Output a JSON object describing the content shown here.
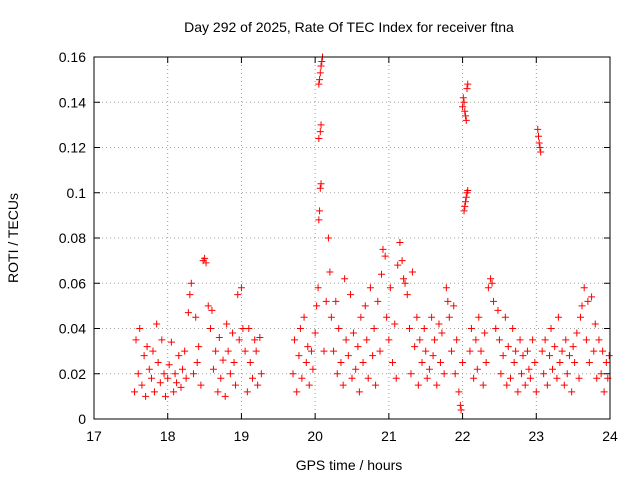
{
  "chart_data": {
    "type": "scatter",
    "title": "Day 292 of 2025, Rate Of TEC Index for receiver ftna",
    "xlabel": "GPS time / hours",
    "ylabel": "ROTI / TECUs",
    "xlim": [
      17,
      24
    ],
    "ylim": [
      0,
      0.16
    ],
    "x_ticks": [
      17,
      18,
      19,
      20,
      21,
      22,
      23,
      24
    ],
    "x_tick_labels": [
      "17",
      "18",
      "19",
      "20",
      "21",
      "22",
      "23",
      "24"
    ],
    "y_ticks": [
      0,
      0.02,
      0.04,
      0.06,
      0.08,
      0.1,
      0.12,
      0.14,
      0.16
    ],
    "y_tick_labels": [
      "0",
      "0.02",
      "0.04",
      "0.06",
      "0.08",
      "0.1",
      "0.12",
      "0.14",
      "0.16"
    ],
    "grid": true,
    "marker": "+",
    "color": "#ff0000",
    "series": [
      {
        "name": "ROTI",
        "points": [
          [
            17.55,
            0.012
          ],
          [
            17.57,
            0.035
          ],
          [
            17.6,
            0.02
          ],
          [
            17.62,
            0.04
          ],
          [
            17.65,
            0.015
          ],
          [
            17.68,
            0.028
          ],
          [
            17.7,
            0.01
          ],
          [
            17.72,
            0.032
          ],
          [
            17.75,
            0.022
          ],
          [
            17.78,
            0.018
          ],
          [
            17.8,
            0.03
          ],
          [
            17.82,
            0.012
          ],
          [
            17.85,
            0.042
          ],
          [
            17.87,
            0.025
          ],
          [
            17.9,
            0.016
          ],
          [
            17.92,
            0.035
          ],
          [
            17.95,
            0.02
          ],
          [
            17.97,
            0.01
          ],
          [
            18.0,
            0.018
          ],
          [
            18.02,
            0.024
          ],
          [
            18.05,
            0.034
          ],
          [
            18.08,
            0.012
          ],
          [
            18.1,
            0.02
          ],
          [
            18.12,
            0.016
          ],
          [
            18.15,
            0.028
          ],
          [
            18.18,
            0.014
          ],
          [
            18.2,
            0.022
          ],
          [
            18.23,
            0.03
          ],
          [
            18.25,
            0.018
          ],
          [
            18.28,
            0.047
          ],
          [
            18.3,
            0.055
          ],
          [
            18.32,
            0.06
          ],
          [
            18.35,
            0.02
          ],
          [
            18.38,
            0.045
          ],
          [
            18.4,
            0.025
          ],
          [
            18.42,
            0.032
          ],
          [
            18.45,
            0.015
          ],
          [
            18.48,
            0.07
          ],
          [
            18.5,
            0.071
          ],
          [
            18.52,
            0.069
          ],
          [
            18.55,
            0.05
          ],
          [
            18.58,
            0.04
          ],
          [
            18.6,
            0.048
          ],
          [
            18.62,
            0.022
          ],
          [
            18.65,
            0.03
          ],
          [
            18.68,
            0.012
          ],
          [
            18.7,
            0.036
          ],
          [
            18.72,
            0.018
          ],
          [
            18.75,
            0.026
          ],
          [
            18.78,
            0.01
          ],
          [
            18.8,
            0.042
          ],
          [
            18.82,
            0.03
          ],
          [
            18.85,
            0.02
          ],
          [
            18.88,
            0.038
          ],
          [
            18.9,
            0.025
          ],
          [
            18.92,
            0.015
          ],
          [
            18.95,
            0.055
          ],
          [
            18.97,
            0.035
          ],
          [
            19.0,
            0.058
          ],
          [
            19.02,
            0.04
          ],
          [
            19.05,
            0.03
          ],
          [
            19.08,
            0.012
          ],
          [
            19.1,
            0.04
          ],
          [
            19.12,
            0.025
          ],
          [
            19.15,
            0.018
          ],
          [
            19.18,
            0.035
          ],
          [
            19.2,
            0.03
          ],
          [
            19.22,
            0.015
          ],
          [
            19.25,
            0.036
          ],
          [
            19.27,
            0.02
          ],
          [
            19.7,
            0.02
          ],
          [
            19.72,
            0.035
          ],
          [
            19.75,
            0.012
          ],
          [
            19.78,
            0.028
          ],
          [
            19.8,
            0.04
          ],
          [
            19.82,
            0.018
          ],
          [
            19.85,
            0.045
          ],
          [
            19.88,
            0.025
          ],
          [
            19.9,
            0.032
          ],
          [
            19.92,
            0.015
          ],
          [
            19.95,
            0.03
          ],
          [
            19.97,
            0.022
          ],
          [
            20.0,
            0.038
          ],
          [
            20.02,
            0.05
          ],
          [
            20.04,
            0.058
          ],
          [
            20.05,
            0.088
          ],
          [
            20.06,
            0.092
          ],
          [
            20.07,
            0.102
          ],
          [
            20.08,
            0.104
          ],
          [
            20.05,
            0.124
          ],
          [
            20.07,
            0.127
          ],
          [
            20.08,
            0.13
          ],
          [
            20.05,
            0.148
          ],
          [
            20.06,
            0.15
          ],
          [
            20.07,
            0.153
          ],
          [
            20.08,
            0.156
          ],
          [
            20.09,
            0.158
          ],
          [
            20.1,
            0.16
          ],
          [
            20.12,
            0.03
          ],
          [
            20.15,
            0.052
          ],
          [
            20.18,
            0.08
          ],
          [
            20.2,
            0.065
          ],
          [
            20.22,
            0.045
          ],
          [
            20.25,
            0.03
          ],
          [
            20.28,
            0.052
          ],
          [
            20.3,
            0.02
          ],
          [
            20.32,
            0.04
          ],
          [
            20.35,
            0.025
          ],
          [
            20.38,
            0.015
          ],
          [
            20.4,
            0.062
          ],
          [
            20.42,
            0.035
          ],
          [
            20.45,
            0.028
          ],
          [
            20.48,
            0.055
          ],
          [
            20.5,
            0.018
          ],
          [
            20.52,
            0.038
          ],
          [
            20.55,
            0.022
          ],
          [
            20.58,
            0.032
          ],
          [
            20.6,
            0.012
          ],
          [
            20.62,
            0.045
          ],
          [
            20.65,
            0.025
          ],
          [
            20.68,
            0.05
          ],
          [
            20.7,
            0.035
          ],
          [
            20.72,
            0.018
          ],
          [
            20.75,
            0.058
          ],
          [
            20.78,
            0.028
          ],
          [
            20.8,
            0.04
          ],
          [
            20.82,
            0.015
          ],
          [
            20.85,
            0.052
          ],
          [
            20.88,
            0.03
          ],
          [
            20.9,
            0.064
          ],
          [
            20.92,
            0.075
          ],
          [
            20.95,
            0.072
          ],
          [
            20.97,
            0.045
          ],
          [
            21.0,
            0.035
          ],
          [
            21.02,
            0.058
          ],
          [
            21.05,
            0.025
          ],
          [
            21.08,
            0.042
          ],
          [
            21.1,
            0.018
          ],
          [
            21.12,
            0.068
          ],
          [
            21.15,
            0.078
          ],
          [
            21.18,
            0.07
          ],
          [
            21.2,
            0.062
          ],
          [
            21.22,
            0.06
          ],
          [
            21.25,
            0.055
          ],
          [
            21.28,
            0.04
          ],
          [
            21.3,
            0.02
          ],
          [
            21.32,
            0.065
          ],
          [
            21.35,
            0.032
          ],
          [
            21.38,
            0.045
          ],
          [
            21.4,
            0.015
          ],
          [
            21.42,
            0.035
          ],
          [
            21.45,
            0.025
          ],
          [
            21.48,
            0.04
          ],
          [
            21.5,
            0.03
          ],
          [
            21.52,
            0.018
          ],
          [
            21.55,
            0.022
          ],
          [
            21.58,
            0.045
          ],
          [
            21.6,
            0.028
          ],
          [
            21.62,
            0.035
          ],
          [
            21.65,
            0.015
          ],
          [
            21.68,
            0.042
          ],
          [
            21.7,
            0.025
          ],
          [
            21.72,
            0.038
          ],
          [
            21.75,
            0.02
          ],
          [
            21.78,
            0.058
          ],
          [
            21.8,
            0.052
          ],
          [
            21.82,
            0.045
          ],
          [
            21.85,
            0.03
          ],
          [
            21.88,
            0.05
          ],
          [
            21.9,
            0.02
          ],
          [
            21.92,
            0.035
          ],
          [
            21.95,
            0.012
          ],
          [
            21.97,
            0.006
          ],
          [
            21.98,
            0.004
          ],
          [
            22.0,
            0.025
          ],
          [
            22.0,
            0.138
          ],
          [
            22.01,
            0.142
          ],
          [
            22.02,
            0.14
          ],
          [
            22.03,
            0.136
          ],
          [
            22.04,
            0.134
          ],
          [
            22.05,
            0.132
          ],
          [
            22.06,
            0.146
          ],
          [
            22.07,
            0.148
          ],
          [
            22.02,
            0.092
          ],
          [
            22.03,
            0.094
          ],
          [
            22.04,
            0.096
          ],
          [
            22.05,
            0.098
          ],
          [
            22.06,
            0.1
          ],
          [
            22.07,
            0.101
          ],
          [
            22.1,
            0.03
          ],
          [
            22.12,
            0.04
          ],
          [
            22.15,
            0.018
          ],
          [
            22.18,
            0.035
          ],
          [
            22.2,
            0.022
          ],
          [
            22.22,
            0.045
          ],
          [
            22.25,
            0.03
          ],
          [
            22.28,
            0.015
          ],
          [
            22.3,
            0.038
          ],
          [
            22.32,
            0.025
          ],
          [
            22.35,
            0.058
          ],
          [
            22.38,
            0.062
          ],
          [
            22.4,
            0.06
          ],
          [
            22.42,
            0.052
          ],
          [
            22.45,
            0.04
          ],
          [
            22.48,
            0.048
          ],
          [
            22.5,
            0.035
          ],
          [
            22.52,
            0.02
          ],
          [
            22.55,
            0.028
          ],
          [
            22.58,
            0.045
          ],
          [
            22.6,
            0.015
          ],
          [
            22.62,
            0.032
          ],
          [
            22.65,
            0.018
          ],
          [
            22.68,
            0.04
          ],
          [
            22.7,
            0.025
          ],
          [
            22.72,
            0.03
          ],
          [
            22.75,
            0.012
          ],
          [
            22.78,
            0.035
          ],
          [
            22.8,
            0.02
          ],
          [
            22.82,
            0.028
          ],
          [
            22.85,
            0.015
          ],
          [
            22.88,
            0.03
          ],
          [
            22.9,
            0.022
          ],
          [
            22.92,
            0.018
          ],
          [
            22.95,
            0.035
          ],
          [
            22.98,
            0.025
          ],
          [
            23.0,
            0.012
          ],
          [
            23.02,
            0.128
          ],
          [
            23.03,
            0.125
          ],
          [
            23.04,
            0.122
          ],
          [
            23.05,
            0.12
          ],
          [
            23.06,
            0.118
          ],
          [
            23.08,
            0.03
          ],
          [
            23.1,
            0.02
          ],
          [
            23.12,
            0.035
          ],
          [
            23.15,
            0.015
          ],
          [
            23.18,
            0.028
          ],
          [
            23.2,
            0.04
          ],
          [
            23.22,
            0.022
          ],
          [
            23.25,
            0.032
          ],
          [
            23.28,
            0.018
          ],
          [
            23.3,
            0.045
          ],
          [
            23.32,
            0.025
          ],
          [
            23.35,
            0.03
          ],
          [
            23.38,
            0.015
          ],
          [
            23.4,
            0.035
          ],
          [
            23.42,
            0.02
          ],
          [
            23.45,
            0.028
          ],
          [
            23.48,
            0.012
          ],
          [
            23.5,
            0.032
          ],
          [
            23.52,
            0.025
          ],
          [
            23.55,
            0.038
          ],
          [
            23.58,
            0.018
          ],
          [
            23.6,
            0.045
          ],
          [
            23.62,
            0.05
          ],
          [
            23.65,
            0.058
          ],
          [
            23.68,
            0.035
          ],
          [
            23.7,
            0.052
          ],
          [
            23.72,
            0.025
          ],
          [
            23.75,
            0.054
          ],
          [
            23.78,
            0.03
          ],
          [
            23.8,
            0.042
          ],
          [
            23.82,
            0.018
          ],
          [
            23.85,
            0.035
          ],
          [
            23.88,
            0.02
          ],
          [
            23.9,
            0.03
          ],
          [
            23.92,
            0.012
          ],
          [
            23.95,
            0.025
          ],
          [
            23.97,
            0.018
          ],
          [
            23.99,
            0.028
          ]
        ]
      }
    ]
  }
}
